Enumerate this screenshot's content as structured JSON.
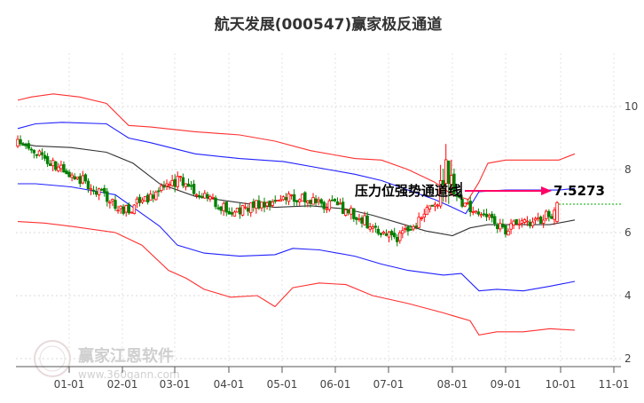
{
  "chart_data": {
    "type": "candlestick",
    "title": "航天发展(000547)赢家极反通道",
    "x_tick_labels": [
      "01-01",
      "02-01",
      "03-01",
      "04-01",
      "05-01",
      "06-01",
      "07-01",
      "08-01",
      "09-01",
      "10-01",
      "11-01"
    ],
    "y_tick_labels": [
      "10",
      "8",
      "6",
      "4",
      "2"
    ],
    "y_ticks": [
      10,
      8,
      6,
      4,
      2
    ],
    "ylim": [
      1.8,
      11.0
    ],
    "grid": true,
    "colors": {
      "up": "#ff0000",
      "down": "#008000",
      "outer_band": "#ff3030",
      "inner_band": "#2020ff",
      "middle_line": "#333333",
      "annotation": "#ff0066",
      "reference": "#00aa00"
    },
    "months": [
      {
        "label": "01-01",
        "mid": [
          8.8,
          7.9
        ]
      },
      {
        "label": "02-01",
        "mid": [
          7.9,
          6.7
        ]
      },
      {
        "label": "03-01",
        "mid": [
          6.7,
          7.7
        ]
      },
      {
        "label": "04-01",
        "mid": [
          7.7,
          6.6
        ]
      },
      {
        "label": "05-01",
        "mid": [
          6.6,
          7.2
        ]
      },
      {
        "label": "06-01",
        "mid": [
          7.2,
          6.8
        ]
      },
      {
        "label": "07-01",
        "mid": [
          6.8,
          5.8
        ]
      },
      {
        "label": "08-01",
        "mid": [
          5.8,
          7.2
        ]
      },
      {
        "label": "09-01",
        "mid": [
          7.2,
          6.1
        ]
      },
      {
        "label": "10-01",
        "mid": [
          6.1,
          6.6
        ]
      }
    ],
    "outer_upper": [
      [
        0,
        10.2
      ],
      [
        15,
        10.3
      ],
      [
        40,
        10.4
      ],
      [
        70,
        10.3
      ],
      [
        100,
        10.1
      ],
      [
        125,
        9.4
      ],
      [
        150,
        9.35
      ],
      [
        200,
        9.2
      ],
      [
        250,
        9.1
      ],
      [
        290,
        8.9
      ],
      [
        330,
        8.6
      ],
      [
        360,
        8.45
      ],
      [
        380,
        8.35
      ],
      [
        410,
        8.3
      ],
      [
        440,
        8.0
      ],
      [
        470,
        7.6
      ],
      [
        490,
        7.2
      ],
      [
        508,
        7.05
      ],
      [
        520,
        7.6
      ],
      [
        530,
        8.2
      ],
      [
        550,
        8.3
      ],
      [
        580,
        8.3
      ],
      [
        610,
        8.3
      ],
      [
        628,
        8.5
      ]
    ],
    "inner_upper": [
      [
        0,
        9.3
      ],
      [
        20,
        9.45
      ],
      [
        50,
        9.5
      ],
      [
        100,
        9.45
      ],
      [
        125,
        9.0
      ],
      [
        150,
        8.85
      ],
      [
        200,
        8.5
      ],
      [
        250,
        8.35
      ],
      [
        300,
        8.25
      ],
      [
        350,
        8.0
      ],
      [
        380,
        7.85
      ],
      [
        410,
        7.65
      ],
      [
        440,
        7.35
      ],
      [
        470,
        7.05
      ],
      [
        490,
        6.8
      ],
      [
        505,
        6.6
      ],
      [
        520,
        7.3
      ],
      [
        550,
        7.35
      ],
      [
        580,
        7.35
      ],
      [
        610,
        7.35
      ],
      [
        628,
        7.4
      ]
    ],
    "middle_line": [
      [
        0,
        8.85
      ],
      [
        20,
        8.75
      ],
      [
        60,
        8.7
      ],
      [
        100,
        8.55
      ],
      [
        130,
        8.2
      ],
      [
        160,
        7.55
      ],
      [
        200,
        7.15
      ],
      [
        250,
        6.95
      ],
      [
        290,
        6.8
      ],
      [
        330,
        6.85
      ],
      [
        370,
        6.75
      ],
      [
        400,
        6.55
      ],
      [
        430,
        6.3
      ],
      [
        460,
        6.05
      ],
      [
        490,
        5.9
      ],
      [
        510,
        6.15
      ],
      [
        530,
        6.25
      ],
      [
        560,
        6.25
      ],
      [
        600,
        6.25
      ],
      [
        628,
        6.4
      ]
    ],
    "inner_lower": [
      [
        0,
        7.55
      ],
      [
        20,
        7.55
      ],
      [
        60,
        7.45
      ],
      [
        110,
        7.2
      ],
      [
        140,
        6.6
      ],
      [
        160,
        6.2
      ],
      [
        180,
        5.6
      ],
      [
        210,
        5.35
      ],
      [
        250,
        5.25
      ],
      [
        290,
        5.3
      ],
      [
        310,
        5.5
      ],
      [
        340,
        5.45
      ],
      [
        380,
        5.25
      ],
      [
        410,
        5.0
      ],
      [
        440,
        4.8
      ],
      [
        480,
        4.65
      ],
      [
        500,
        4.7
      ],
      [
        520,
        4.15
      ],
      [
        540,
        4.2
      ],
      [
        570,
        4.15
      ],
      [
        600,
        4.3
      ],
      [
        628,
        4.45
      ]
    ],
    "outer_lower": [
      [
        0,
        6.35
      ],
      [
        30,
        6.3
      ],
      [
        60,
        6.2
      ],
      [
        110,
        6.0
      ],
      [
        140,
        5.6
      ],
      [
        170,
        4.8
      ],
      [
        190,
        4.55
      ],
      [
        210,
        4.2
      ],
      [
        240,
        3.95
      ],
      [
        270,
        4.0
      ],
      [
        290,
        3.65
      ],
      [
        310,
        4.25
      ],
      [
        340,
        4.4
      ],
      [
        370,
        4.35
      ],
      [
        400,
        4.0
      ],
      [
        440,
        3.75
      ],
      [
        480,
        3.45
      ],
      [
        510,
        3.2
      ],
      [
        520,
        2.75
      ],
      [
        540,
        2.85
      ],
      [
        570,
        2.85
      ],
      [
        600,
        2.95
      ],
      [
        628,
        2.9
      ]
    ],
    "annotation": {
      "label": "压力位强势通道线",
      "value": "7.5273",
      "price": 7.5273
    },
    "reference_line_price": 6.9
  },
  "watermark": {
    "brand": "赢家江恩软件",
    "url": "www.360gann.com"
  }
}
